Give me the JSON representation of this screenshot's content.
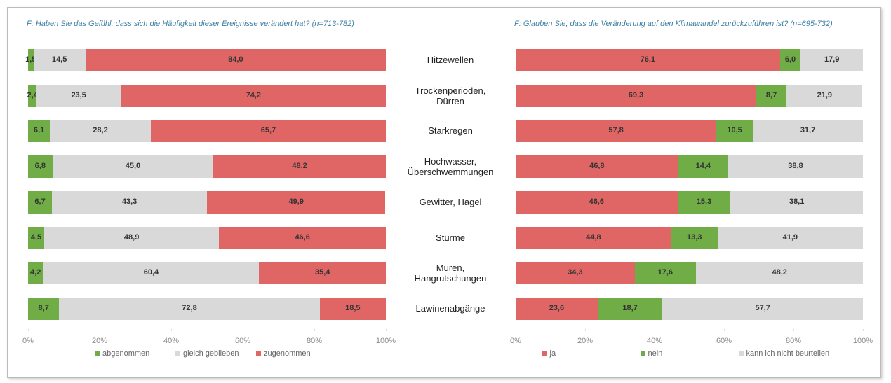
{
  "chart_data": [
    {
      "type": "stacked-bar-horizontal",
      "title": "F: Haben Sie das Gefühl, dass sich die Häufigkeit dieser Ereignisse verändert hat? (n=713-782)",
      "categories": [
        "Hitzewellen",
        "Trockenperioden,\nDürren",
        "Starkregen",
        "Hochwasser,\nÜberschwemmungen",
        "Gewitter, Hagel",
        "Stürme",
        "Muren,\nHangrutschungen",
        "Lawinenabgänge"
      ],
      "series": [
        {
          "name": "abgenommen",
          "color": "#70ad47",
          "values": [
            1.5,
            2.4,
            6.1,
            6.8,
            6.7,
            4.5,
            4.2,
            8.7
          ],
          "value_labels": [
            "1,5",
            "2,4",
            "6,1",
            "6,8",
            "6,7",
            "4,5",
            "4,2",
            "8,7"
          ]
        },
        {
          "name": "gleich geblieben",
          "color": "#d9d9d9",
          "values": [
            14.5,
            23.5,
            28.2,
            45.0,
            43.3,
            48.9,
            60.4,
            72.8
          ],
          "value_labels": [
            "14,5",
            "23,5",
            "28,2",
            "45,0",
            "43,3",
            "48,9",
            "60,4",
            "72,8"
          ]
        },
        {
          "name": "zugenommen",
          "color": "#e06666",
          "values": [
            84.0,
            74.2,
            65.7,
            48.2,
            49.9,
            46.6,
            35.4,
            18.5
          ],
          "value_labels": [
            "84,0",
            "74,2",
            "65,7",
            "48,2",
            "49,9",
            "46,6",
            "35,4",
            "18,5"
          ]
        }
      ],
      "xlim": [
        0,
        100
      ],
      "xticks": [
        {
          "value": 0,
          "label": "0%"
        },
        {
          "value": 20,
          "label": "20%"
        },
        {
          "value": 40,
          "label": "40%"
        },
        {
          "value": 60,
          "label": "60%"
        },
        {
          "value": 80,
          "label": "80%"
        },
        {
          "value": 100,
          "label": "100%"
        }
      ],
      "legend": "bottom"
    },
    {
      "type": "stacked-bar-horizontal",
      "title": "F: Glauben Sie, dass die Veränderung auf den Klimawandel zurückzuführen ist? (n=695-732)",
      "series": [
        {
          "name": "ja",
          "color": "#e06666",
          "values": [
            76.1,
            69.3,
            57.8,
            46.8,
            46.6,
            44.8,
            34.3,
            23.6
          ],
          "value_labels": [
            "76,1",
            "69,3",
            "57,8",
            "46,8",
            "46,6",
            "44,8",
            "34,3",
            "23,6"
          ]
        },
        {
          "name": "nein",
          "color": "#70ad47",
          "values": [
            6.0,
            8.7,
            10.5,
            14.4,
            15.3,
            13.3,
            17.6,
            18.7
          ],
          "value_labels": [
            "6,0",
            "8,7",
            "10,5",
            "14,4",
            "15,3",
            "13,3",
            "17,6",
            "18,7"
          ]
        },
        {
          "name": "kann ich nicht beurteilen",
          "color": "#d9d9d9",
          "values": [
            17.9,
            21.9,
            31.7,
            38.8,
            38.1,
            41.9,
            48.2,
            57.7
          ],
          "value_labels": [
            "17,9",
            "21,9",
            "31,7",
            "38,8",
            "38,1",
            "41,9",
            "48,2",
            "57,7"
          ]
        }
      ],
      "xlim": [
        0,
        100
      ],
      "xticks": [
        {
          "value": 0,
          "label": "0%"
        },
        {
          "value": 20,
          "label": "20%"
        },
        {
          "value": 40,
          "label": "40%"
        },
        {
          "value": 60,
          "label": "60%"
        },
        {
          "value": 80,
          "label": "80%"
        },
        {
          "value": 100,
          "label": "100%"
        }
      ],
      "legend": "bottom"
    }
  ]
}
